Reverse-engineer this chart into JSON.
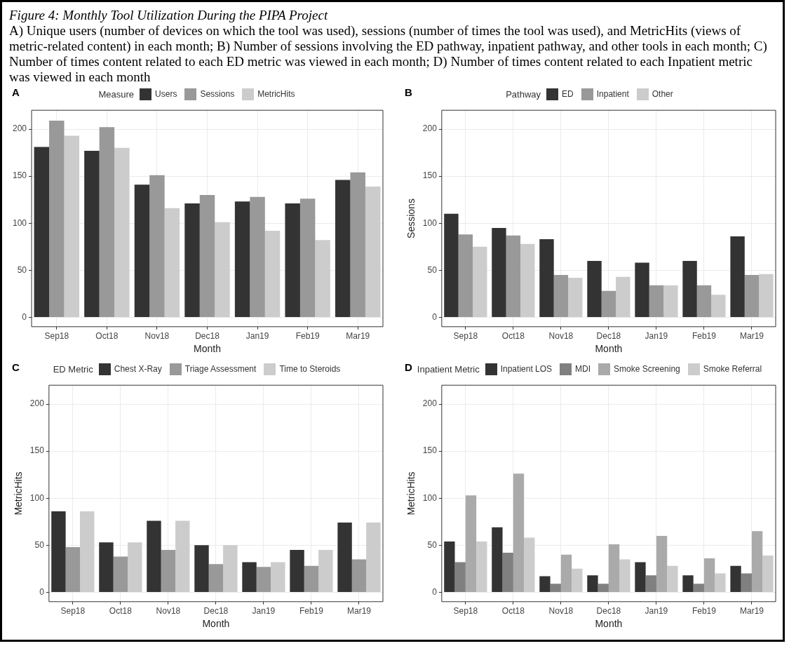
{
  "chart_data": [
    {
      "type": "bar",
      "title": "Figure 4: Monthly Tool Utilization During the PIPA Project",
      "subtitle": "A) Unique users (number of devices on which the tool was used), sessions (number of times the tool was used), and MetricHits (views of metric-related content) in each month;  B) Number of sessions involving the ED pathway, inpatient pathway, and other tools in each month; C) Number of times content related to each ED metric was viewed in each month; D) Number of times content related to each Inpatient metric was viewed in each month",
      "annotations": [
        "A"
      ],
      "xlabel": "Month",
      "legend_title": "Measure",
      "legend": "top",
      "grid": true,
      "categories": [
        "Sep18",
        "Oct18",
        "Nov18",
        "Dec18",
        "Jan19",
        "Feb19",
        "Mar19"
      ],
      "ylim": [
        -10,
        220
      ],
      "yticks": [
        0,
        50,
        100,
        150,
        200
      ],
      "series": [
        {
          "name": "Users",
          "color": "#333333",
          "values": [
            181,
            177,
            141,
            121,
            123,
            121,
            146
          ]
        },
        {
          "name": "Sessions",
          "color": "#999999",
          "values": [
            209,
            202,
            151,
            130,
            128,
            126,
            154
          ]
        },
        {
          "name": "MetricHits",
          "color": "#cccccc",
          "values": [
            193,
            180,
            116,
            101,
            92,
            82,
            139
          ]
        }
      ]
    },
    {
      "type": "bar",
      "annotations": [
        "B"
      ],
      "xlabel": "Month",
      "ylabel": "Sessions",
      "legend_title": "Pathway",
      "legend": "top",
      "grid": true,
      "categories": [
        "Sep18",
        "Oct18",
        "Nov18",
        "Dec18",
        "Jan19",
        "Feb19",
        "Mar19"
      ],
      "ylim": [
        -10,
        220
      ],
      "yticks": [
        0,
        50,
        100,
        150,
        200
      ],
      "series": [
        {
          "name": "ED",
          "color": "#333333",
          "values": [
            110,
            95,
            83,
            60,
            58,
            60,
            86
          ]
        },
        {
          "name": "Inpatient",
          "color": "#999999",
          "values": [
            88,
            87,
            45,
            28,
            34,
            34,
            45
          ]
        },
        {
          "name": "Other",
          "color": "#cccccc",
          "values": [
            75,
            78,
            42,
            43,
            34,
            24,
            46
          ]
        }
      ]
    },
    {
      "type": "bar",
      "annotations": [
        "C"
      ],
      "xlabel": "Month",
      "ylabel": "MetricHits",
      "legend_title": "ED Metric",
      "legend": "top",
      "grid": true,
      "categories": [
        "Sep18",
        "Oct18",
        "Nov18",
        "Dec18",
        "Jan19",
        "Feb19",
        "Mar19"
      ],
      "ylim": [
        -10,
        220
      ],
      "yticks": [
        0,
        50,
        100,
        150,
        200
      ],
      "series": [
        {
          "name": "Chest X-Ray",
          "color": "#333333",
          "values": [
            86,
            53,
            76,
            50,
            32,
            45,
            74
          ]
        },
        {
          "name": "Triage Assessment",
          "color": "#999999",
          "values": [
            48,
            38,
            45,
            30,
            27,
            28,
            35
          ]
        },
        {
          "name": "Time to Steroids",
          "color": "#cccccc",
          "values": [
            86,
            53,
            76,
            50,
            32,
            45,
            74
          ]
        }
      ]
    },
    {
      "type": "bar",
      "annotations": [
        "D"
      ],
      "xlabel": "Month",
      "ylabel": "MetricHits",
      "legend_title": "Inpatient Metric",
      "legend": "top",
      "grid": true,
      "categories": [
        "Sep18",
        "Oct18",
        "Nov18",
        "Dec18",
        "Jan19",
        "Feb19",
        "Mar19"
      ],
      "ylim": [
        -10,
        220
      ],
      "yticks": [
        0,
        50,
        100,
        150,
        200
      ],
      "series": [
        {
          "name": "Inpatient LOS",
          "color": "#333333",
          "values": [
            54,
            69,
            17,
            18,
            32,
            18,
            28
          ]
        },
        {
          "name": "MDI",
          "color": "#808080",
          "values": [
            32,
            42,
            9,
            9,
            18,
            9,
            20
          ]
        },
        {
          "name": "Smoke Screening",
          "color": "#aaaaaa",
          "values": [
            103,
            126,
            40,
            51,
            60,
            36,
            65
          ]
        },
        {
          "name": "Smoke Referral",
          "color": "#cccccc",
          "values": [
            54,
            58,
            25,
            35,
            28,
            20,
            39
          ]
        }
      ]
    }
  ]
}
